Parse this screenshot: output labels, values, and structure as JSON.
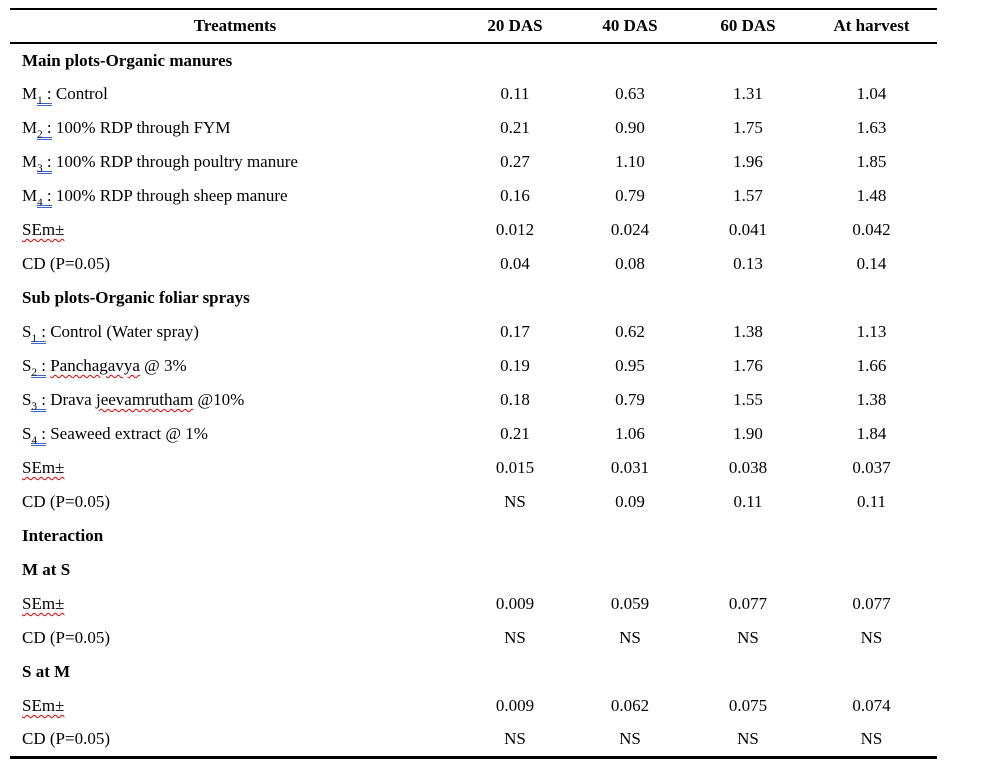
{
  "colors": {
    "grammar_underline": "#3a66cc",
    "spell_underline": "#e00000",
    "text": "#000000",
    "border": "#000000"
  },
  "table": {
    "columns": [
      "Treatments",
      "20 DAS",
      "40 DAS",
      "60 DAS",
      "At harvest"
    ],
    "rows": [
      {
        "bold": true,
        "parts": [
          {
            "s": "p",
            "t": "Main plots-Organic manures"
          }
        ],
        "cells": [
          "",
          "",
          "",
          ""
        ]
      },
      {
        "bold": false,
        "parts": [
          {
            "s": "p",
            "t": "M"
          },
          {
            "s": "g",
            "sub": "1",
            "tail": " :"
          },
          {
            "s": "p",
            "t": " Control"
          }
        ],
        "cells": [
          "0.11",
          "0.63",
          "1.31",
          "1.04"
        ]
      },
      {
        "bold": false,
        "parts": [
          {
            "s": "p",
            "t": "M"
          },
          {
            "s": "g",
            "sub": "2",
            "tail": " :"
          },
          {
            "s": "p",
            "t": " 100% RDP through FYM"
          }
        ],
        "cells": [
          "0.21",
          "0.90",
          "1.75",
          "1.63"
        ]
      },
      {
        "bold": false,
        "parts": [
          {
            "s": "p",
            "t": "M"
          },
          {
            "s": "g",
            "sub": "3",
            "tail": " :"
          },
          {
            "s": "p",
            "t": " 100% RDP through poultry manure"
          }
        ],
        "cells": [
          "0.27",
          "1.10",
          "1.96",
          "1.85"
        ]
      },
      {
        "bold": false,
        "parts": [
          {
            "s": "p",
            "t": "M"
          },
          {
            "s": "g",
            "sub": "4",
            "tail": " :"
          },
          {
            "s": "p",
            "t": " 100% RDP through sheep manure"
          }
        ],
        "cells": [
          "0.16",
          "0.79",
          "1.57",
          "1.48"
        ]
      },
      {
        "bold": false,
        "parts": [
          {
            "s": "w",
            "t": "SEm±"
          }
        ],
        "cells": [
          "0.012",
          "0.024",
          "0.041",
          "0.042"
        ]
      },
      {
        "bold": false,
        "parts": [
          {
            "s": "p",
            "t": "CD (P=0.05)"
          }
        ],
        "cells": [
          "0.04",
          "0.08",
          "0.13",
          "0.14"
        ]
      },
      {
        "bold": true,
        "parts": [
          {
            "s": "p",
            "t": "Sub plots-Organic foliar sprays"
          }
        ],
        "cells": [
          "",
          "",
          "",
          ""
        ]
      },
      {
        "bold": false,
        "parts": [
          {
            "s": "p",
            "t": "S"
          },
          {
            "s": "g",
            "sub": "1",
            "tail": " :"
          },
          {
            "s": "p",
            "t": " Control (Water spray)"
          }
        ],
        "cells": [
          "0.17",
          "0.62",
          "1.38",
          "1.13"
        ]
      },
      {
        "bold": false,
        "parts": [
          {
            "s": "p",
            "t": "S"
          },
          {
            "s": "g",
            "sub": "2",
            "tail": " :"
          },
          {
            "s": "p",
            "t": " "
          },
          {
            "s": "w",
            "t": "Panchagavya"
          },
          {
            "s": "p",
            "t": " @ 3%"
          }
        ],
        "cells": [
          "0.19",
          "0.95",
          "1.76",
          "1.66"
        ]
      },
      {
        "bold": false,
        "parts": [
          {
            "s": "p",
            "t": "S"
          },
          {
            "s": "g",
            "sub": "3",
            "tail": " :"
          },
          {
            "s": "p",
            "t": " Drava "
          },
          {
            "s": "w",
            "t": "jeevamrutham"
          },
          {
            "s": "p",
            "t": " @10%"
          }
        ],
        "cells": [
          "0.18",
          "0.79",
          "1.55",
          "1.38"
        ]
      },
      {
        "bold": false,
        "parts": [
          {
            "s": "p",
            "t": "S"
          },
          {
            "s": "g",
            "sub": "4",
            "tail": " :"
          },
          {
            "s": "p",
            "t": " Seaweed extract @ 1%"
          }
        ],
        "cells": [
          "0.21",
          "1.06",
          "1.90",
          "1.84"
        ]
      },
      {
        "bold": false,
        "parts": [
          {
            "s": "w",
            "t": "SEm±"
          }
        ],
        "cells": [
          "0.015",
          "0.031",
          "0.038",
          "0.037"
        ]
      },
      {
        "bold": false,
        "parts": [
          {
            "s": "p",
            "t": "CD (P=0.05)"
          }
        ],
        "cells": [
          "NS",
          "0.09",
          "0.11",
          "0.11"
        ]
      },
      {
        "bold": true,
        "parts": [
          {
            "s": "p",
            "t": "Interaction"
          }
        ],
        "cells": [
          "",
          "",
          "",
          ""
        ]
      },
      {
        "bold": true,
        "parts": [
          {
            "s": "p",
            "t": "M at S"
          }
        ],
        "cells": [
          "",
          "",
          "",
          ""
        ]
      },
      {
        "bold": false,
        "parts": [
          {
            "s": "w",
            "t": "SEm±"
          }
        ],
        "cells": [
          "0.009",
          "0.059",
          "0.077",
          "0.077"
        ]
      },
      {
        "bold": false,
        "parts": [
          {
            "s": "p",
            "t": "CD (P=0.05)"
          }
        ],
        "cells": [
          "NS",
          "NS",
          "NS",
          "NS"
        ]
      },
      {
        "bold": true,
        "parts": [
          {
            "s": "p",
            "t": "S at M"
          }
        ],
        "cells": [
          "",
          "",
          "",
          ""
        ]
      },
      {
        "bold": false,
        "parts": [
          {
            "s": "w",
            "t": "SEm±"
          }
        ],
        "cells": [
          "0.009",
          "0.062",
          "0.075",
          "0.074"
        ]
      },
      {
        "bold": false,
        "parts": [
          {
            "s": "p",
            "t": "CD (P=0.05)"
          }
        ],
        "cells": [
          "NS",
          "NS",
          "NS",
          "NS"
        ]
      }
    ]
  }
}
